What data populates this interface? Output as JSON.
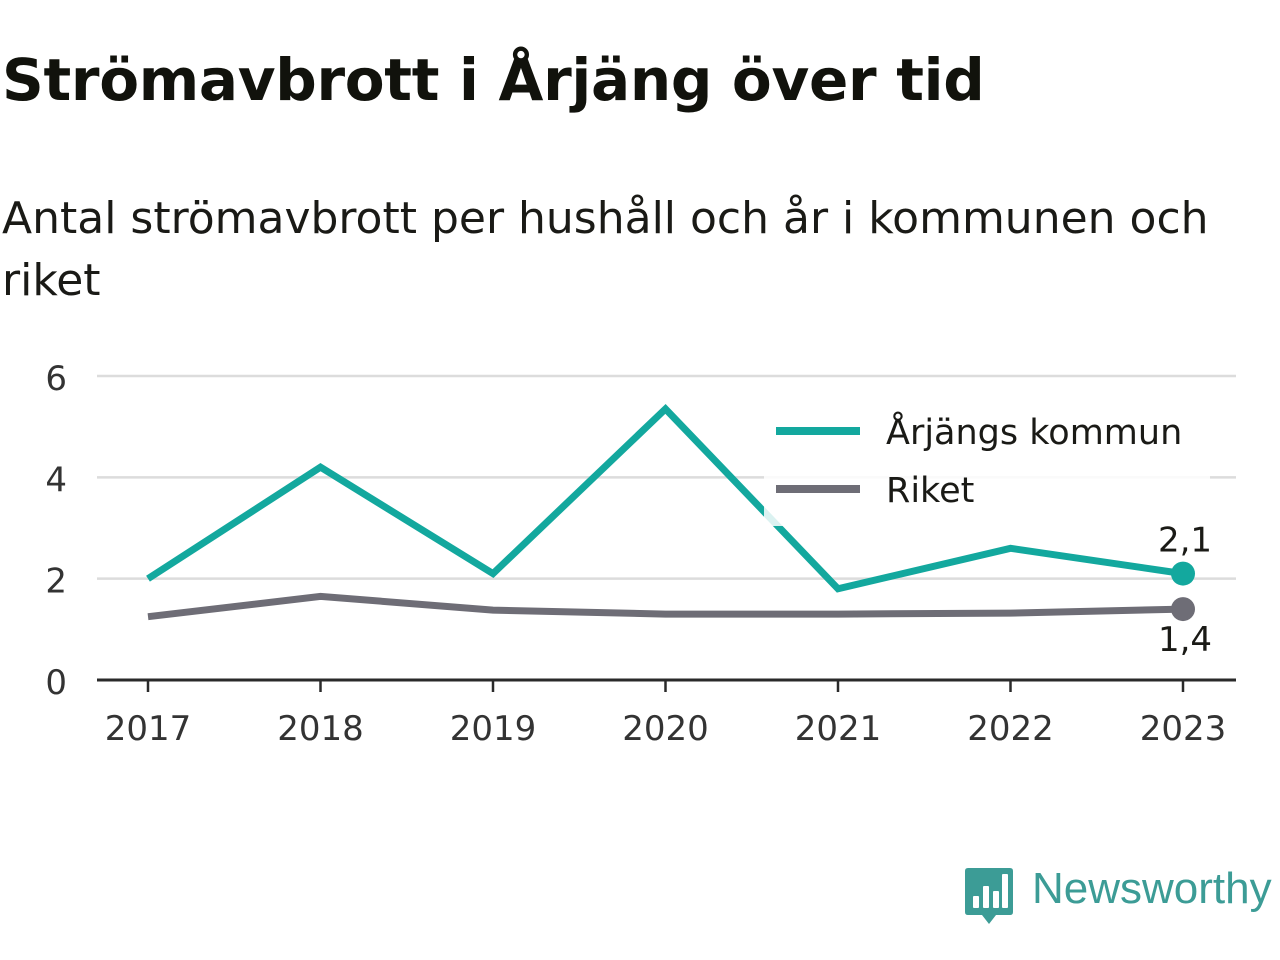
{
  "header": {
    "title": "Strömavbrott i Årjäng över tid",
    "subtitle": "Antal strömavbrott per hushåll och år i kommunen och riket"
  },
  "chart_data": {
    "type": "line",
    "title": "Strömavbrott i Årjäng över tid",
    "subtitle": "Antal strömavbrott per hushåll och år i kommunen och riket",
    "xlabel": "",
    "ylabel": "",
    "categories": [
      "2017",
      "2018",
      "2019",
      "2020",
      "2021",
      "2022",
      "2023"
    ],
    "ylim": [
      0,
      6
    ],
    "yticks": [
      0,
      2,
      4,
      6
    ],
    "grid": true,
    "legend_position": "top-right",
    "series": [
      {
        "name": "Årjängs kommun",
        "values": [
          2.0,
          4.2,
          2.1,
          5.35,
          1.8,
          2.6,
          2.1
        ],
        "color": "#13a89e",
        "end_label": "2,1"
      },
      {
        "name": "Riket",
        "values": [
          1.25,
          1.65,
          1.38,
          1.3,
          1.3,
          1.32,
          1.4
        ],
        "color": "#6e6d76",
        "end_label": "1,4"
      }
    ]
  },
  "branding": {
    "name": "Newsworthy",
    "color": "#3c9c96",
    "icon": "newsworthy-logo-icon"
  }
}
